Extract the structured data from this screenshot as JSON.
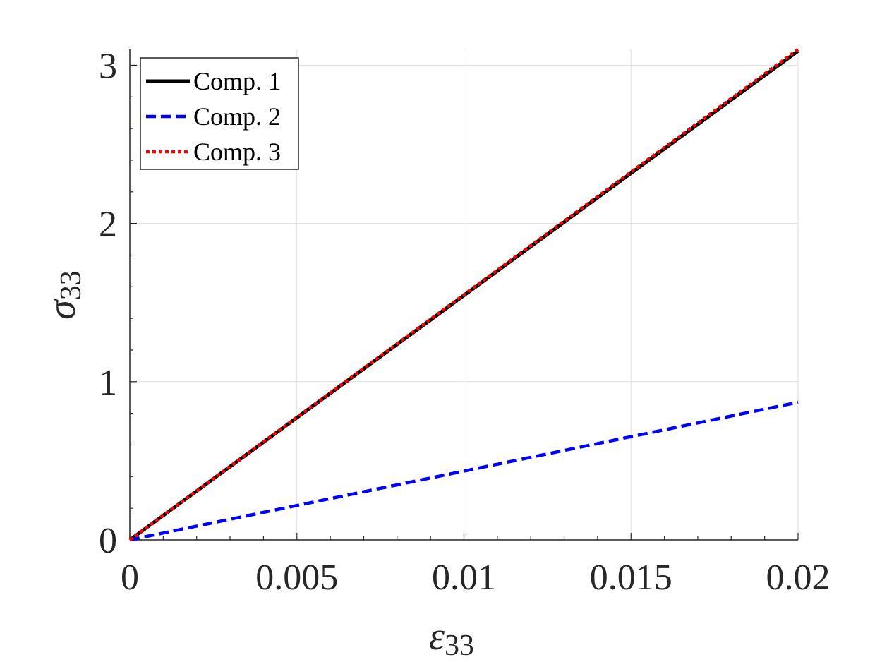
{
  "chart_data": {
    "type": "line",
    "xlabel": {
      "symbol": "ε",
      "subscript": "33"
    },
    "ylabel": {
      "symbol": "σ",
      "subscript": "33"
    },
    "xlim": [
      0,
      0.02
    ],
    "ylim": [
      0,
      3.1
    ],
    "x_ticks": [
      0,
      0.005,
      0.01,
      0.015,
      0.02
    ],
    "x_tick_labels": [
      "0",
      "0.005",
      "0.01",
      "0.015",
      "0.02"
    ],
    "y_ticks": [
      0,
      1,
      2,
      3
    ],
    "y_tick_labels": [
      "0",
      "1",
      "2",
      "3"
    ],
    "x_minor_step": 0.001,
    "y_minor_step": 0.2,
    "grid": true,
    "legend_position": "top-left",
    "series": [
      {
        "name": "Comp. 1",
        "color": "#000000",
        "style": "solid",
        "x": [
          0,
          0.02
        ],
        "y": [
          0,
          3.09
        ]
      },
      {
        "name": "Comp. 2",
        "color": "#0000ff",
        "style": "dashed",
        "x": [
          0,
          0.02
        ],
        "y": [
          0,
          0.87
        ]
      },
      {
        "name": "Comp. 3",
        "color": "#ff0000",
        "style": "dotted",
        "x": [
          0,
          0.02
        ],
        "y": [
          0,
          3.1
        ]
      }
    ]
  }
}
